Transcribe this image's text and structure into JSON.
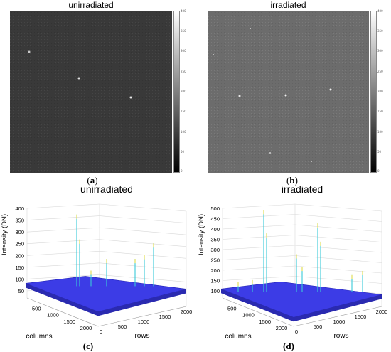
{
  "panels": [
    {
      "title": "unirradiated",
      "sublabel_open": "(",
      "sublabel_letter": "a",
      "sublabel_close": ")",
      "colorbar_ticks": [
        "400",
        "350",
        "300",
        "250",
        "200",
        "150",
        "100",
        "50",
        "0"
      ],
      "background_gray": "#3a3a3a"
    },
    {
      "title": "irradiated",
      "sublabel_open": "(",
      "sublabel_letter": "b",
      "sublabel_close": ")",
      "colorbar_ticks": [
        "400",
        "350",
        "300",
        "250",
        "200",
        "150",
        "100",
        "50",
        "0"
      ],
      "background_gray": "#6e6e6e"
    }
  ],
  "chart_data": [
    {
      "type": "surface",
      "title": "unirradiated",
      "zlabel": "Intensity (DN)",
      "xlabel": "columns",
      "ylabel": "rows",
      "z_ticks": [
        "50",
        "100",
        "150",
        "200",
        "250",
        "300",
        "350",
        "400"
      ],
      "column_ticks": [
        "500",
        "1000",
        "1500",
        "2000"
      ],
      "row_ticks": [
        "0",
        "500",
        "1000",
        "1500",
        "2000"
      ],
      "zlim": [
        50,
        400
      ],
      "surface_level": 100,
      "sublabel": "(c)",
      "surface_color": "#3c3ce6"
    },
    {
      "type": "surface",
      "title": "irradiated",
      "zlabel": "Intensity (DN)",
      "xlabel": "columns",
      "ylabel": "rows",
      "z_ticks": [
        "100",
        "150",
        "200",
        "250",
        "300",
        "350",
        "400",
        "450",
        "500"
      ],
      "column_ticks": [
        "500",
        "1000",
        "1500",
        "2000"
      ],
      "row_ticks": [
        "0",
        "500",
        "1000",
        "1500",
        "2000"
      ],
      "zlim": [
        100,
        500
      ],
      "surface_level": 130,
      "sublabel": "(d)",
      "surface_color": "#3c3ce6"
    }
  ]
}
